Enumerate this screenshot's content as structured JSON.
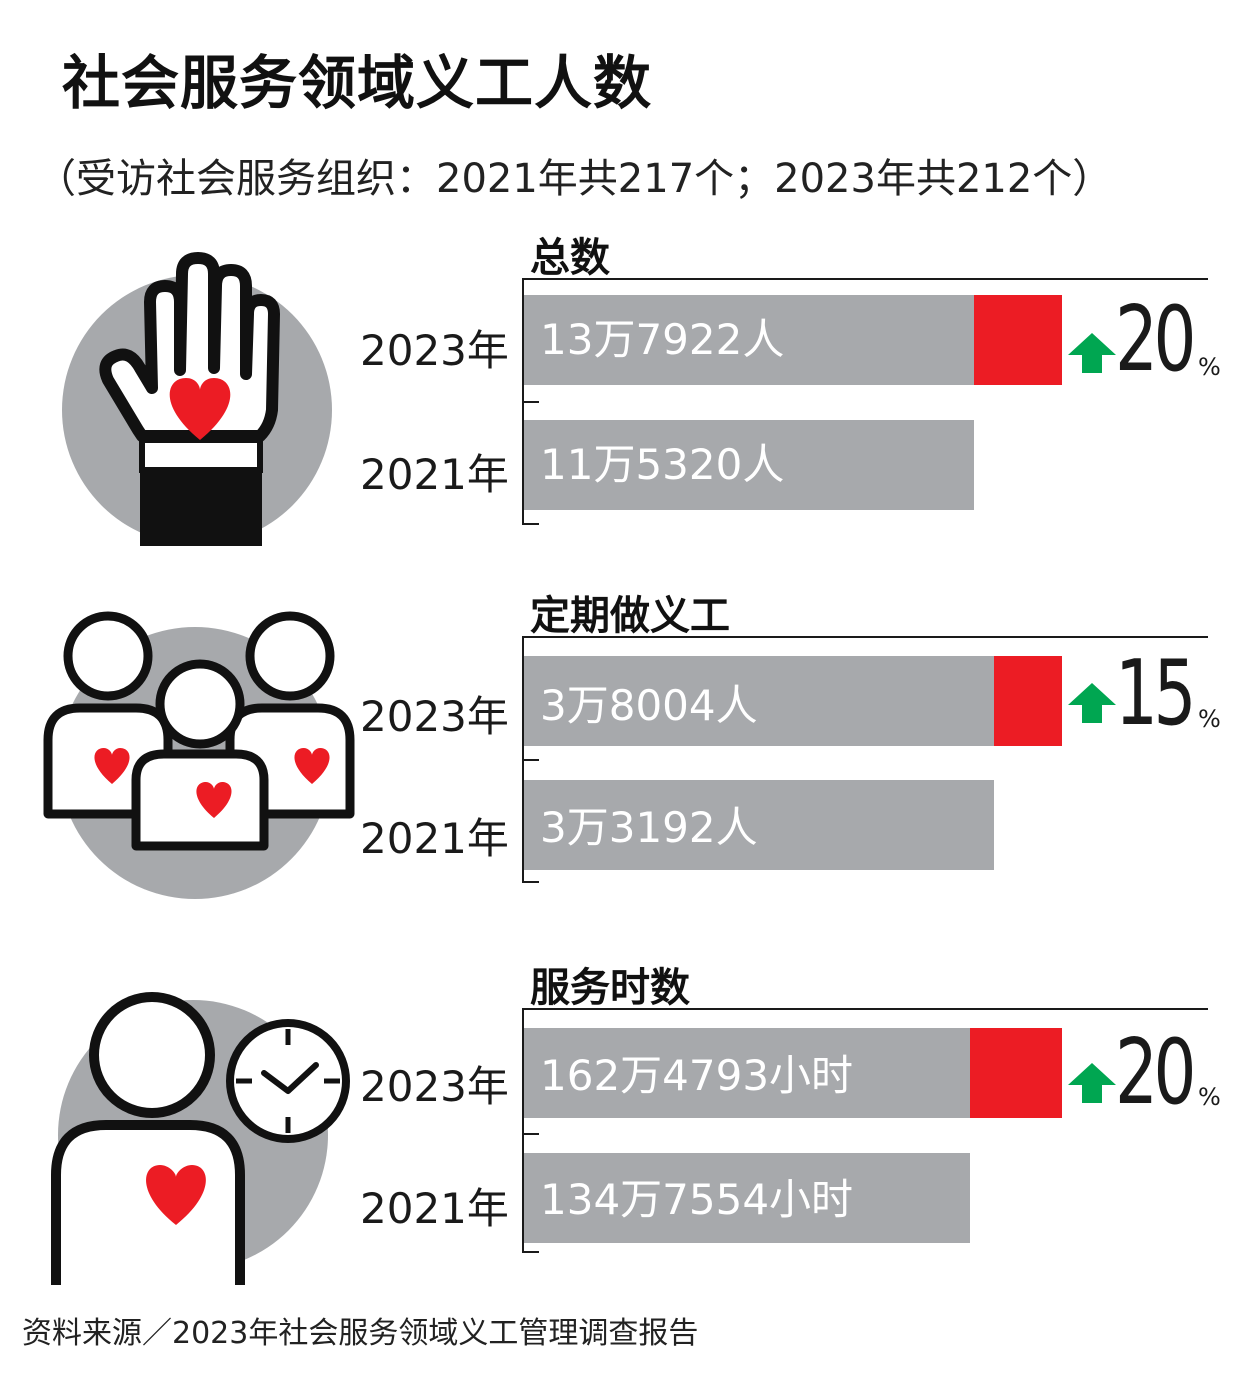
{
  "title": "社会服务领域义工人数",
  "subtitle": "（受访社会服务组织：2021年共217个；2023年共212个）",
  "footer": "资料来源／2023年社会服务领域义工管理调查报告",
  "colors": {
    "bar": "#a7a9ac",
    "increase": "#ec1c24",
    "arrow": "#00a651",
    "circle": "#a7a9ac",
    "heart": "#ec1c24"
  },
  "chart_data": [
    {
      "type": "bar",
      "title": "总数",
      "icon": "raised-hand-heart-icon",
      "categories": [
        "2023年",
        "2021年"
      ],
      "values": [
        137922,
        115320
      ],
      "value_labels": [
        "13万7922人",
        "11万5320人"
      ],
      "change_value": "20",
      "change_unit": "%"
    },
    {
      "type": "bar",
      "title": "定期做义工",
      "icon": "volunteer-group-icon",
      "categories": [
        "2023年",
        "2021年"
      ],
      "values": [
        38004,
        33192
      ],
      "value_labels": [
        "3万8004人",
        "3万3192人"
      ],
      "change_value": "15",
      "change_unit": "%"
    },
    {
      "type": "bar",
      "title": "服务时数",
      "icon": "person-clock-icon",
      "categories": [
        "2023年",
        "2021年"
      ],
      "values": [
        1624793,
        1347554
      ],
      "value_labels": [
        "162万4793小时",
        "134万7554小时"
      ],
      "change_value": "20",
      "change_unit": "%"
    }
  ]
}
